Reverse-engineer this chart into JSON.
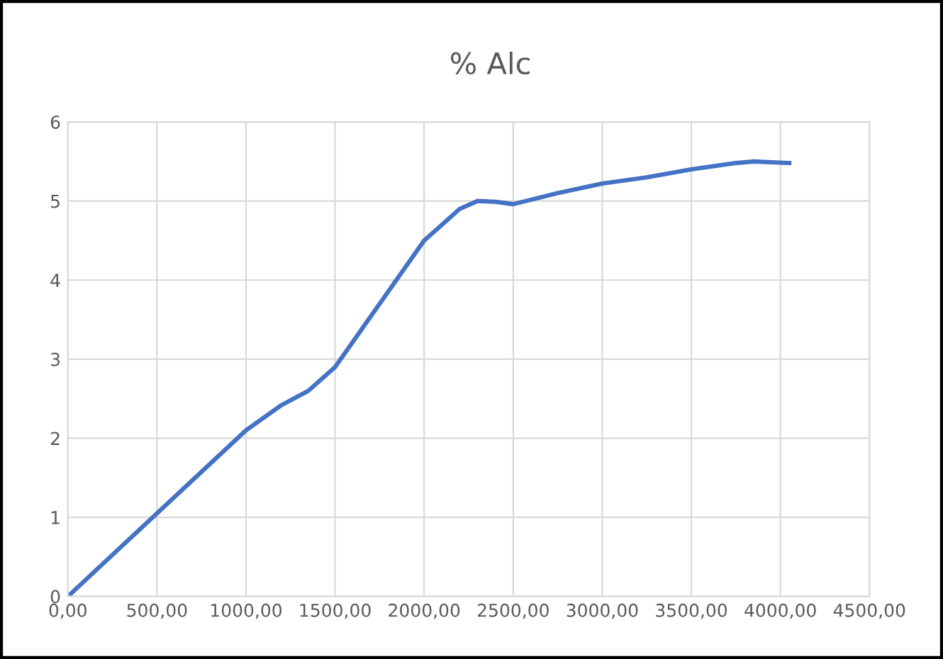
{
  "chart_data": {
    "type": "line",
    "title": "% Alc",
    "x": [
      0,
      500,
      1000,
      1200,
      1350,
      1500,
      1750,
      2000,
      2200,
      2300,
      2400,
      2500,
      2750,
      3000,
      3250,
      3500,
      3750,
      3850,
      4050
    ],
    "series": [
      {
        "color": "#4472c4",
        "values": [
          0,
          1.05,
          2.1,
          2.42,
          2.6,
          2.9,
          3.7,
          4.5,
          4.9,
          5.0,
          4.99,
          4.96,
          5.1,
          5.22,
          5.3,
          5.4,
          5.48,
          5.5,
          5.48
        ]
      }
    ],
    "xlim": [
      0,
      4500
    ],
    "xticks": [
      {
        "value": 0,
        "label": "0,00"
      },
      {
        "value": 500,
        "label": "500,00"
      },
      {
        "value": 1000,
        "label": "1000,00"
      },
      {
        "value": 1500,
        "label": "1500,00"
      },
      {
        "value": 2000,
        "label": "2000,00"
      },
      {
        "value": 2500,
        "label": "2500,00"
      },
      {
        "value": 3000,
        "label": "3000,00"
      },
      {
        "value": 3500,
        "label": "3500,00"
      },
      {
        "value": 4000,
        "label": "4000,00"
      },
      {
        "value": 4500,
        "label": "4500,00"
      }
    ],
    "ylim": [
      0,
      6
    ],
    "yticks": [
      0,
      1,
      2,
      3,
      4,
      5,
      6
    ],
    "grid": true,
    "legend": false,
    "marker": "none",
    "line_style": "solid"
  }
}
